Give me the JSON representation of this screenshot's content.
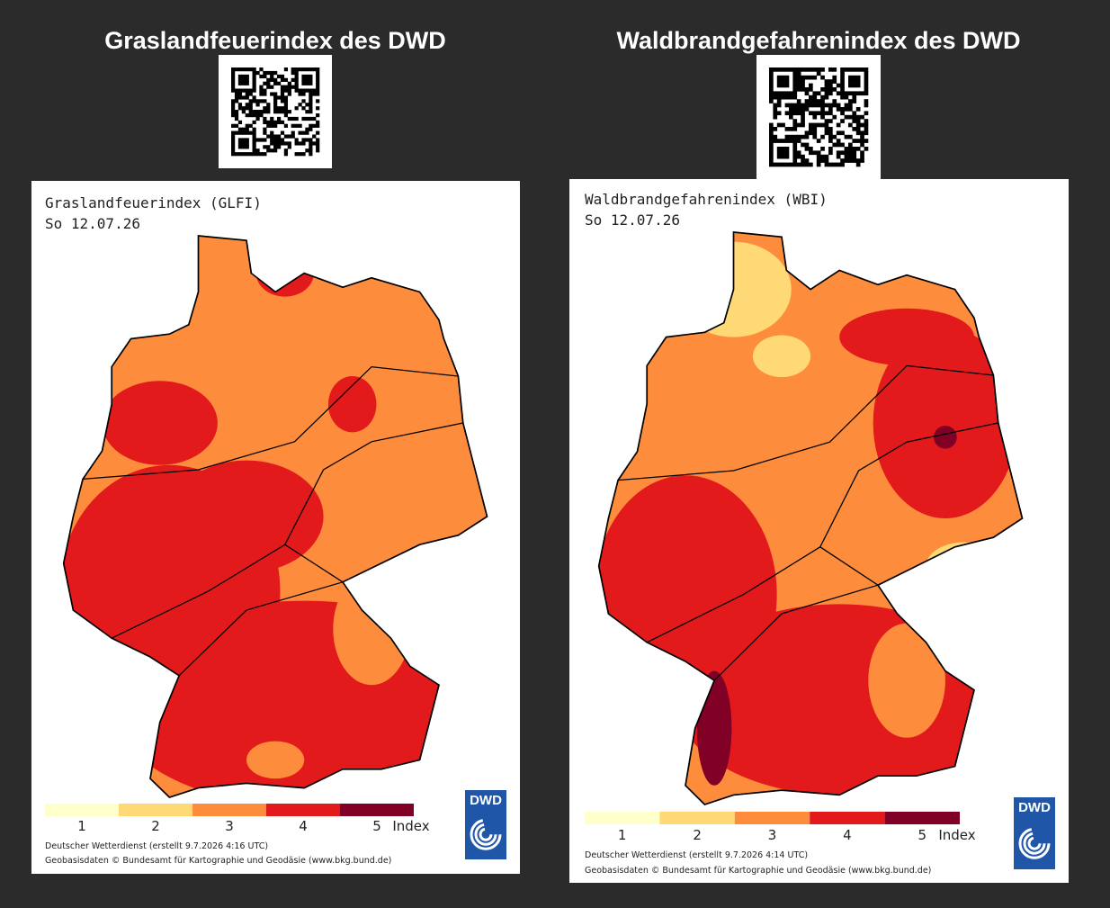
{
  "panels": [
    {
      "heading": "Graslandfeuerindex des DWD",
      "map": {
        "title": "Graslandfeuerindex (GLFI)",
        "date": "So 12.07.26"
      },
      "legend": {
        "labels": [
          "1",
          "2",
          "3",
          "4",
          "5"
        ],
        "unit": "Index",
        "colors": [
          "#ffffcc",
          "#fed976",
          "#fd8d3c",
          "#e31a1c",
          "#800026"
        ]
      },
      "credits": [
        "Deutscher Wetterdienst (erstellt 9.7.2026 4:16 UTC)",
        "Geobasisdaten © Bundesamt für Kartographie und Geodäsie (www.bkg.bund.de)"
      ],
      "logo": "DWD"
    },
    {
      "heading": "Waldbrandgefahrenindex des DWD",
      "map": {
        "title": "Waldbrandgefahrenindex (WBI)",
        "date": "So 12.07.26"
      },
      "legend": {
        "labels": [
          "1",
          "2",
          "3",
          "4",
          "5"
        ],
        "unit": "Index",
        "colors": [
          "#ffffcc",
          "#fed976",
          "#fd8d3c",
          "#e31a1c",
          "#800026"
        ]
      },
      "credits": [
        "Deutscher Wetterdienst (erstellt 9.7.2026 4:14 UTC)",
        "Geobasisdaten © Bundesamt für Kartographie und Geodäsie (www.bkg.bund.de)"
      ],
      "logo": "DWD"
    }
  ]
}
